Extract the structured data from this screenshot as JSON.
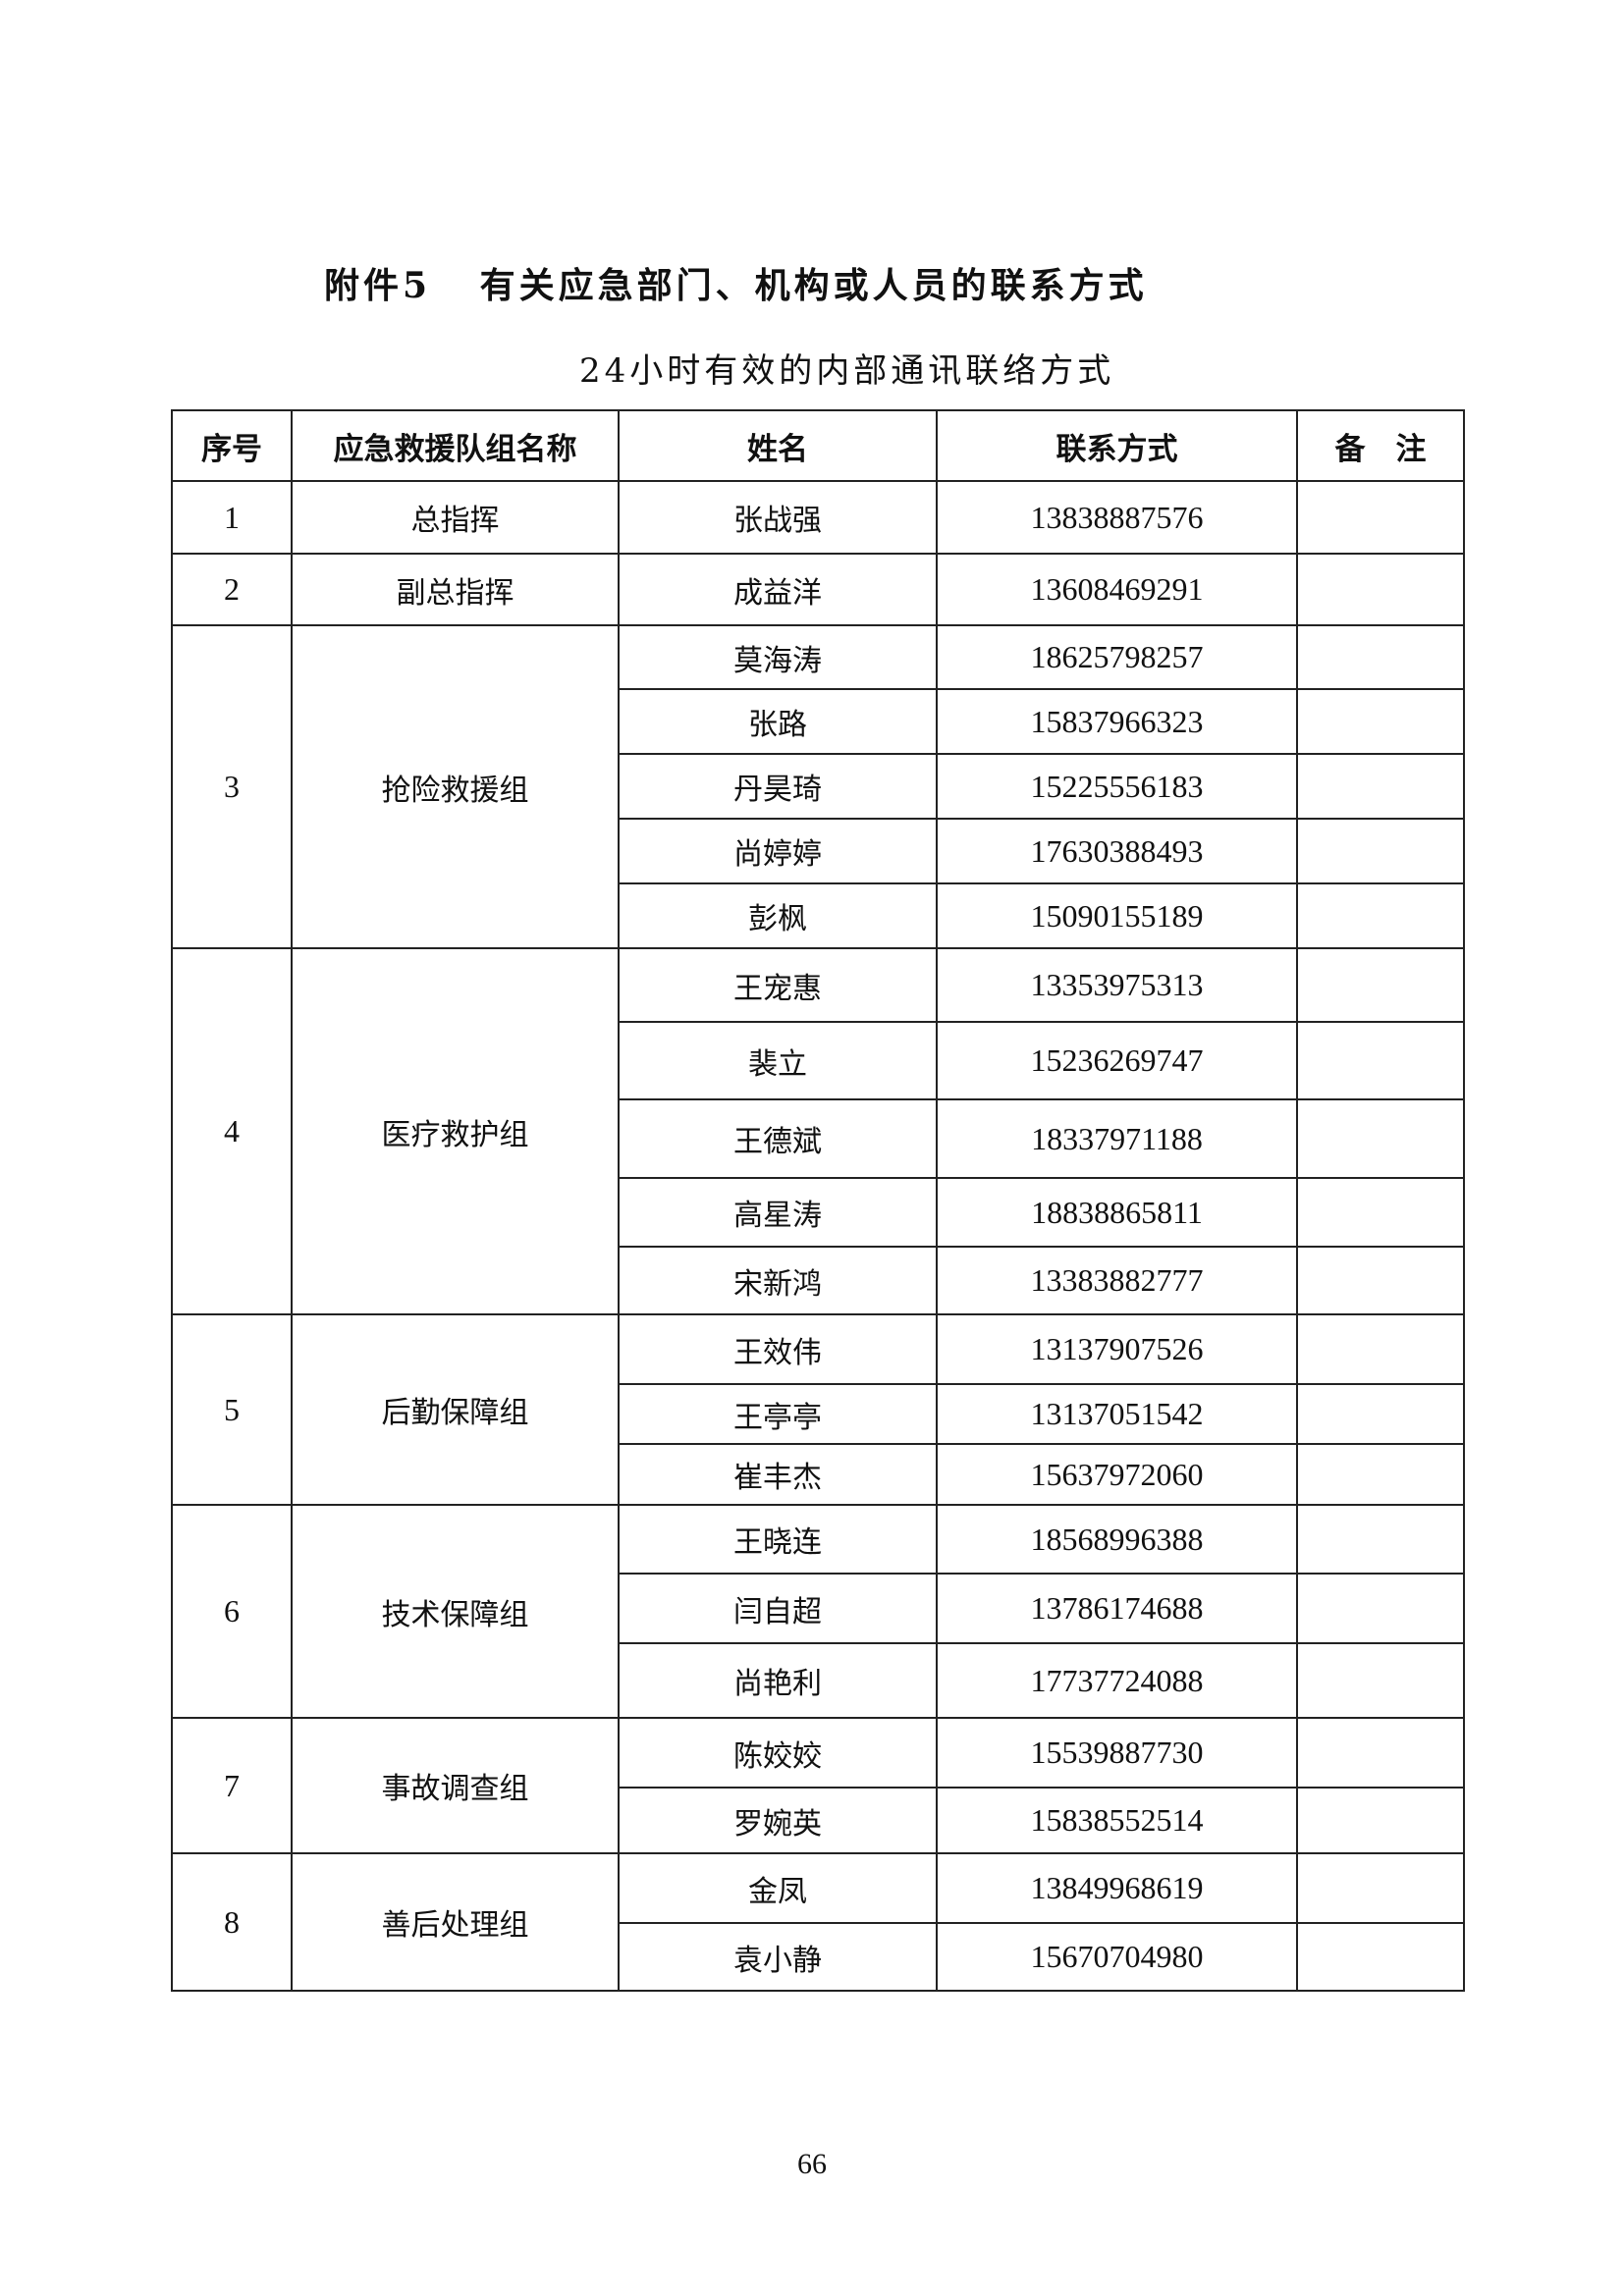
{
  "title": "附件5   有关应急部门、机构或人员的联系方式",
  "subtitle": "24小时有效的内部通讯联络方式",
  "table": {
    "headers": [
      "序号",
      "应急救援队组名称",
      "姓名",
      "联系方式",
      "备　注"
    ],
    "groups": [
      {
        "seq": "1",
        "name": "总指挥",
        "members": [
          {
            "name": "张战强",
            "phone": "13838887576",
            "note": ""
          }
        ]
      },
      {
        "seq": "2",
        "name": "副总指挥",
        "members": [
          {
            "name": "成益洋",
            "phone": "13608469291",
            "note": ""
          }
        ]
      },
      {
        "seq": "3",
        "name": "抢险救援组",
        "members": [
          {
            "name": "莫海涛",
            "phone": "18625798257",
            "note": ""
          },
          {
            "name": "张路",
            "phone": "15837966323",
            "note": ""
          },
          {
            "name": "丹昊琦",
            "phone": "15225556183",
            "note": ""
          },
          {
            "name": "尚婷婷",
            "phone": "17630388493",
            "note": ""
          },
          {
            "name": "彭枫",
            "phone": "15090155189",
            "note": ""
          }
        ]
      },
      {
        "seq": "4",
        "name": "医疗救护组",
        "members": [
          {
            "name": "王宠惠",
            "phone": "13353975313",
            "note": ""
          },
          {
            "name": "裴立",
            "phone": "15236269747",
            "note": ""
          },
          {
            "name": "王德斌",
            "phone": "18337971188",
            "note": ""
          },
          {
            "name": "高星涛",
            "phone": "18838865811",
            "note": ""
          },
          {
            "name": "宋新鸿",
            "phone": "13383882777",
            "note": ""
          }
        ]
      },
      {
        "seq": "5",
        "name": "后勤保障组",
        "members": [
          {
            "name": "王效伟",
            "phone": "13137907526",
            "note": ""
          },
          {
            "name": "王亭亭",
            "phone": "13137051542",
            "note": ""
          },
          {
            "name": "崔丰杰",
            "phone": "15637972060",
            "note": ""
          }
        ]
      },
      {
        "seq": "6",
        "name": "技术保障组",
        "members": [
          {
            "name": "王晓连",
            "phone": "18568996388",
            "note": ""
          },
          {
            "name": "闫自超",
            "phone": "13786174688",
            "note": ""
          },
          {
            "name": "尚艳利",
            "phone": "17737724088",
            "note": ""
          }
        ]
      },
      {
        "seq": "7",
        "name": "事故调查组",
        "members": [
          {
            "name": "陈姣姣",
            "phone": "15539887730",
            "note": ""
          },
          {
            "name": "罗婉英",
            "phone": "15838552514",
            "note": ""
          }
        ]
      },
      {
        "seq": "8",
        "name": "善后处理组",
        "members": [
          {
            "name": "金凤",
            "phone": "13849968619",
            "note": ""
          },
          {
            "name": "袁小静",
            "phone": "15670704980",
            "note": ""
          }
        ]
      }
    ]
  },
  "page_number": "66"
}
